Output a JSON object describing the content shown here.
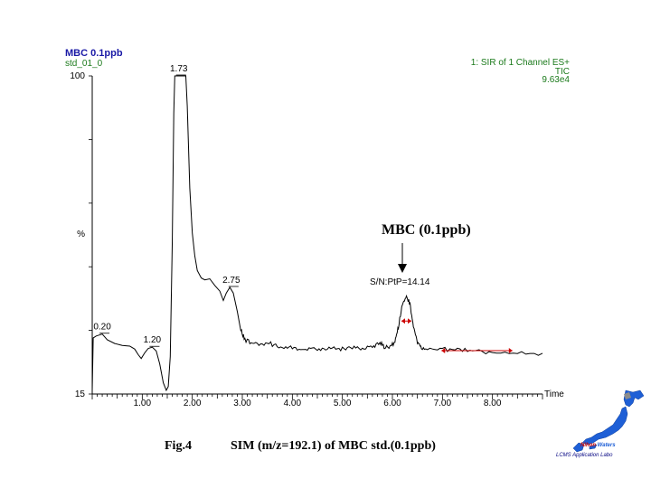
{
  "header": {
    "sample_name": "MBC 0.1ppb",
    "file_name": "std_01_0",
    "channel": "1: SIR of 1 Channel ES+",
    "trace": "TIC",
    "intensity": "9.63e4"
  },
  "annotation": {
    "compound": "MBC (0.1ppb)",
    "sn_label": "S/N:PtP=14.14"
  },
  "caption": {
    "fig": "Fig.4",
    "text": "SIM (m/z=192.1) of MBC std.(0.1ppb)"
  },
  "logo": {
    "brand_nihon": "Nihon",
    "brand_waters": "Waters",
    "subtitle": "LCMS Application Labo"
  },
  "colors": {
    "trace": "#000000",
    "title": "#1a1aa6",
    "info": "#1b7a1b",
    "noise": "#cc0000",
    "logo": "#1e5fd6"
  },
  "chart_data": {
    "type": "line",
    "title": "MBC 0.1ppb",
    "xlabel": "Time",
    "ylabel": "%",
    "xlim": [
      0.0,
      9.0
    ],
    "ylim": [
      15,
      100
    ],
    "x_ticks": [
      "1.00",
      "2.00",
      "3.00",
      "4.00",
      "5.00",
      "6.00",
      "7.00",
      "8.00"
    ],
    "x_tick_values": [
      1,
      2,
      3,
      4,
      5,
      6,
      7,
      8
    ],
    "y_ticks": [
      "15",
      "%",
      "100"
    ],
    "peak_labels": [
      {
        "label": "0.20",
        "x": 0.2,
        "y": 31.0
      },
      {
        "label": "1.20",
        "x": 1.2,
        "y": 27.5
      },
      {
        "label": "1.73",
        "x": 1.73,
        "y": 100.0
      },
      {
        "label": "2.75",
        "x": 2.78,
        "y": 43.5
      }
    ],
    "series": [
      {
        "values": [
          [
            0.0,
            16
          ],
          [
            0.02,
            30
          ],
          [
            0.08,
            30.5
          ],
          [
            0.2,
            31
          ],
          [
            0.3,
            29.5
          ],
          [
            0.45,
            28.5
          ],
          [
            0.6,
            28
          ],
          [
            0.75,
            27.8
          ],
          [
            0.85,
            27
          ],
          [
            0.92,
            25.5
          ],
          [
            0.98,
            24.5
          ],
          [
            1.05,
            26
          ],
          [
            1.12,
            27.2
          ],
          [
            1.2,
            27.5
          ],
          [
            1.28,
            26.5
          ],
          [
            1.35,
            23
          ],
          [
            1.42,
            18
          ],
          [
            1.48,
            16
          ],
          [
            1.52,
            17
          ],
          [
            1.56,
            25
          ],
          [
            1.6,
            55
          ],
          [
            1.63,
            90
          ],
          [
            1.65,
            100
          ],
          [
            1.73,
            100
          ],
          [
            1.8,
            100
          ],
          [
            1.87,
            100
          ],
          [
            1.9,
            92
          ],
          [
            1.95,
            70
          ],
          [
            2.0,
            58
          ],
          [
            2.05,
            52
          ],
          [
            2.1,
            48
          ],
          [
            2.18,
            46
          ],
          [
            2.25,
            45.5
          ],
          [
            2.35,
            45.8
          ],
          [
            2.45,
            44
          ],
          [
            2.55,
            42.5
          ],
          [
            2.62,
            40
          ],
          [
            2.68,
            42
          ],
          [
            2.75,
            43.5
          ],
          [
            2.82,
            42
          ],
          [
            2.9,
            37
          ],
          [
            2.97,
            32
          ],
          [
            3.05,
            29.5
          ],
          [
            3.2,
            28.7
          ],
          [
            3.4,
            28.5
          ],
          [
            3.6,
            28.3
          ],
          [
            3.8,
            27.5
          ],
          [
            4.0,
            27.2
          ],
          [
            4.2,
            27
          ],
          [
            4.4,
            26.8
          ],
          [
            4.6,
            27.1
          ],
          [
            4.8,
            27
          ],
          [
            5.0,
            27.2
          ],
          [
            5.2,
            27.4
          ],
          [
            5.4,
            27.3
          ],
          [
            5.6,
            27.8
          ],
          [
            5.75,
            28.6
          ],
          [
            5.85,
            27.6
          ],
          [
            5.95,
            27.4
          ],
          [
            6.05,
            29
          ],
          [
            6.12,
            33
          ],
          [
            6.2,
            39
          ],
          [
            6.28,
            41
          ],
          [
            6.35,
            39
          ],
          [
            6.42,
            33
          ],
          [
            6.5,
            29
          ],
          [
            6.58,
            27.5
          ],
          [
            6.7,
            27.1
          ],
          [
            7.0,
            26.8
          ],
          [
            7.3,
            26.9
          ],
          [
            7.6,
            26.6
          ],
          [
            8.0,
            26.3
          ],
          [
            8.5,
            26
          ],
          [
            9.0,
            25.8
          ]
        ]
      }
    ],
    "noise_markers": [
      {
        "x1": 6.18,
        "x2": 6.38,
        "y": 34.5
      },
      {
        "x1": 6.98,
        "x2": 8.4,
        "y": 26.6
      }
    ]
  }
}
